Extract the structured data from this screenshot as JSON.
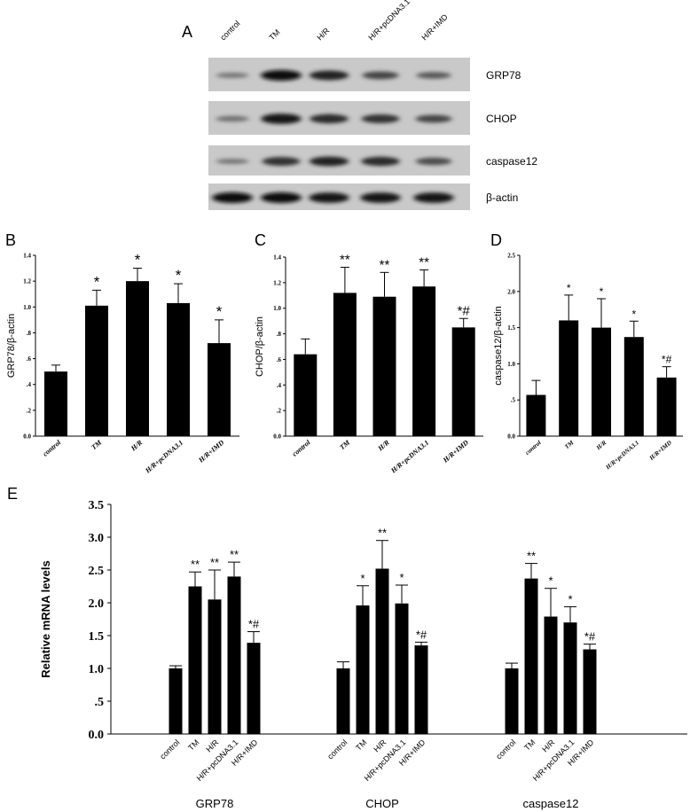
{
  "panels": {
    "a": "A",
    "b": "B",
    "c": "C",
    "d": "D",
    "e": "E"
  },
  "blot": {
    "lanes": [
      "control",
      "TM",
      "H/R",
      "H/R+pcDNA3.1",
      "H/R+IMD"
    ],
    "rows": [
      {
        "label": "GRP78",
        "intensity": [
          0.25,
          1.0,
          0.85,
          0.6,
          0.45
        ]
      },
      {
        "label": "CHOP",
        "intensity": [
          0.3,
          0.95,
          0.8,
          0.75,
          0.6
        ]
      },
      {
        "label": "caspase12",
        "intensity": [
          0.25,
          0.75,
          0.85,
          0.8,
          0.55
        ]
      },
      {
        "label": "β-actin",
        "intensity": [
          1.0,
          1.0,
          0.95,
          0.95,
          0.95
        ]
      }
    ]
  },
  "chart_data": [
    {
      "type": "bar",
      "panel": "B",
      "categories": [
        "control",
        "TM",
        "H/R",
        "H/R+pcDNA3.1",
        "H/R+IMD"
      ],
      "values": [
        0.5,
        1.01,
        1.2,
        1.03,
        0.72
      ],
      "errors": [
        0.05,
        0.12,
        0.1,
        0.15,
        0.18
      ],
      "annotations": [
        "",
        "*",
        "*",
        "*",
        "*"
      ],
      "ylabel": "GRP78/β-actin",
      "ylim": [
        0,
        1.4
      ],
      "yticks": [
        "0.0",
        ".2",
        ".4",
        ".6",
        ".8",
        "1.0",
        "1.2",
        "1.4"
      ]
    },
    {
      "type": "bar",
      "panel": "C",
      "categories": [
        "control",
        "TM",
        "H/R",
        "H/R+pcDNA3.1",
        "H/R+IMD"
      ],
      "values": [
        0.64,
        1.12,
        1.09,
        1.17,
        0.85
      ],
      "errors": [
        0.12,
        0.2,
        0.19,
        0.13,
        0.07
      ],
      "annotations": [
        "",
        "**",
        "**",
        "**",
        "*#"
      ],
      "ylabel": "CHOP/β-actin",
      "ylim": [
        0,
        1.4
      ],
      "yticks": [
        "0.0",
        ".2",
        ".4",
        ".6",
        ".8",
        "1.0",
        "1.2",
        "1.4"
      ]
    },
    {
      "type": "bar",
      "panel": "D",
      "categories": [
        "control",
        "TM",
        "H/R",
        "H/R+pcDNA3.1",
        "H/R+IMD"
      ],
      "values": [
        0.57,
        1.6,
        1.5,
        1.37,
        0.81
      ],
      "errors": [
        0.2,
        0.35,
        0.4,
        0.22,
        0.15
      ],
      "annotations": [
        "",
        "*",
        "*",
        "*",
        "*#"
      ],
      "ylabel": "caspase12/β-actin",
      "ylim": [
        0,
        2.5
      ],
      "yticks": [
        "0.0",
        ".5",
        "1.0",
        "1.5",
        "2.0",
        "2.5"
      ]
    },
    {
      "type": "bar",
      "panel": "E",
      "groups": [
        "GRP78",
        "CHOP",
        "caspase12"
      ],
      "categories": [
        "control",
        "TM",
        "H/R",
        "H/R+pcDNA3.1",
        "H/R+IMD"
      ],
      "series": [
        {
          "group": "GRP78",
          "values": [
            1.0,
            2.25,
            2.05,
            2.4,
            1.39
          ],
          "errors": [
            0.04,
            0.22,
            0.45,
            0.22,
            0.17
          ],
          "annotations": [
            "",
            "**",
            "**",
            "**",
            "*#"
          ]
        },
        {
          "group": "CHOP",
          "values": [
            1.0,
            1.96,
            2.52,
            1.99,
            1.35
          ],
          "errors": [
            0.1,
            0.3,
            0.43,
            0.28,
            0.05
          ],
          "annotations": [
            "",
            "*",
            "**",
            "*",
            "*#"
          ]
        },
        {
          "group": "caspase12",
          "values": [
            1.0,
            2.37,
            1.79,
            1.7,
            1.29
          ],
          "errors": [
            0.08,
            0.23,
            0.43,
            0.24,
            0.08
          ],
          "annotations": [
            "",
            "**",
            "*",
            "*",
            "*#"
          ]
        }
      ],
      "ylabel": "Relative mRNA levels",
      "ylim": [
        0,
        3.5
      ],
      "yticks": [
        "0.0",
        ".5",
        "1.0",
        "1.5",
        "2.0",
        "2.5",
        "3.0",
        "3.5"
      ]
    }
  ]
}
